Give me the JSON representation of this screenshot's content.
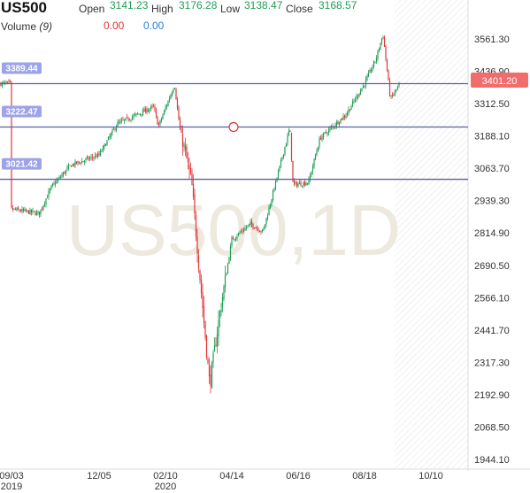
{
  "header": {
    "symbol": "US500",
    "open_label": "Open",
    "open_value": "3141.23",
    "high_label": "High",
    "high_value": "3176.28",
    "low_label": "Low",
    "low_value": "3138.47",
    "close_label": "Close",
    "close_value": "3168.57",
    "volume_label": "Volume",
    "volume_period": "(9)",
    "volume_value_1": "0.00",
    "volume_value_2": "0.00"
  },
  "watermark": "US500,1D",
  "colors": {
    "up": "#1f9d55",
    "down": "#e03535",
    "level_line": "#5c5fa8",
    "level_label_bg": "#9da3e8",
    "price_tag_bg": "#f36c6c",
    "axis_text": "#333333",
    "watermark": "#ede9de"
  },
  "chart_data": {
    "type": "candlestick",
    "x_tick_labels": [
      "09/03",
      "12/05",
      "02/10",
      "04/14",
      "06/16",
      "08/18",
      "10/10"
    ],
    "x_year_labels": [
      {
        "under": "09/03",
        "text": "2019"
      },
      {
        "under": "02/10",
        "text": "2020"
      }
    ],
    "y_tick_labels": [
      "3561.30",
      "3436.90",
      "3312.50",
      "3188.10",
      "3063.70",
      "2939.30",
      "2814.90",
      "2690.50",
      "2566.10",
      "2441.70",
      "2317.30",
      "2192.90",
      "2068.50",
      "1944.10"
    ],
    "ylim": [
      1920,
      3620
    ],
    "horizontal_levels": [
      {
        "label": "3389.44",
        "value": 3389.44
      },
      {
        "label": "3222.47",
        "value": 3222.47
      },
      {
        "label": "3021.42",
        "value": 3021.42
      }
    ],
    "current_price_label": "3401.20",
    "current_price": 3401.2,
    "marker_value": 3222.47,
    "series_path": [
      [
        "09/03",
        2906
      ],
      [
        "10/02",
        2890
      ],
      [
        "10/15",
        2990
      ],
      [
        "11/05",
        3075
      ],
      [
        "12/05",
        3115
      ],
      [
        "12/31",
        3235
      ],
      [
        "01/24",
        3300
      ],
      [
        "01/31",
        3225
      ],
      [
        "02/19",
        3386
      ],
      [
        "02/24",
        3225
      ],
      [
        "03/05",
        3010
      ],
      [
        "03/12",
        2700
      ],
      [
        "03/23",
        2230
      ],
      [
        "04/01",
        2480
      ],
      [
        "04/14",
        2790
      ],
      [
        "05/01",
        2850
      ],
      [
        "05/13",
        2820
      ],
      [
        "06/08",
        3220
      ],
      [
        "06/11",
        3000
      ],
      [
        "06/26",
        3010
      ],
      [
        "07/06",
        3180
      ],
      [
        "07/31",
        3270
      ],
      [
        "08/18",
        3390
      ],
      [
        "08/27",
        3480
      ],
      [
        "09/02",
        3580
      ],
      [
        "09/08",
        3330
      ],
      [
        "09/16",
        3390
      ]
    ]
  }
}
